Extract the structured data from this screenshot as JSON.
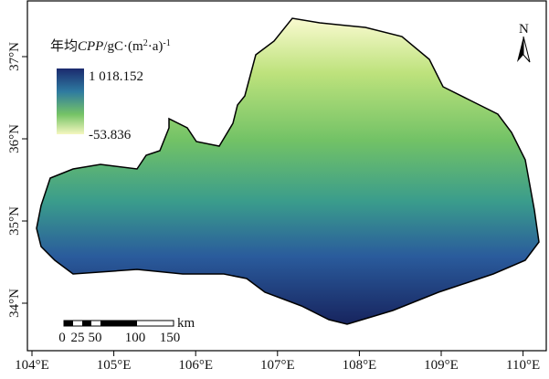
{
  "legend": {
    "title_parts": [
      "年均",
      "CPP",
      "/gC·(m",
      "2",
      "·a)",
      "-1"
    ],
    "max": "1 018.152",
    "min": "-53.836"
  },
  "north": "N",
  "scale_bar": {
    "labels": [
      "0",
      "25",
      "50",
      "100",
      "150"
    ],
    "unit": "km"
  },
  "x_axis": {
    "labels": [
      "104°E",
      "105°E",
      "106°E",
      "107°E",
      "108°E",
      "109°E",
      "110°E"
    ]
  },
  "y_axis": {
    "labels": [
      "37°N",
      "36°N",
      "35°N",
      "34°N"
    ]
  }
}
